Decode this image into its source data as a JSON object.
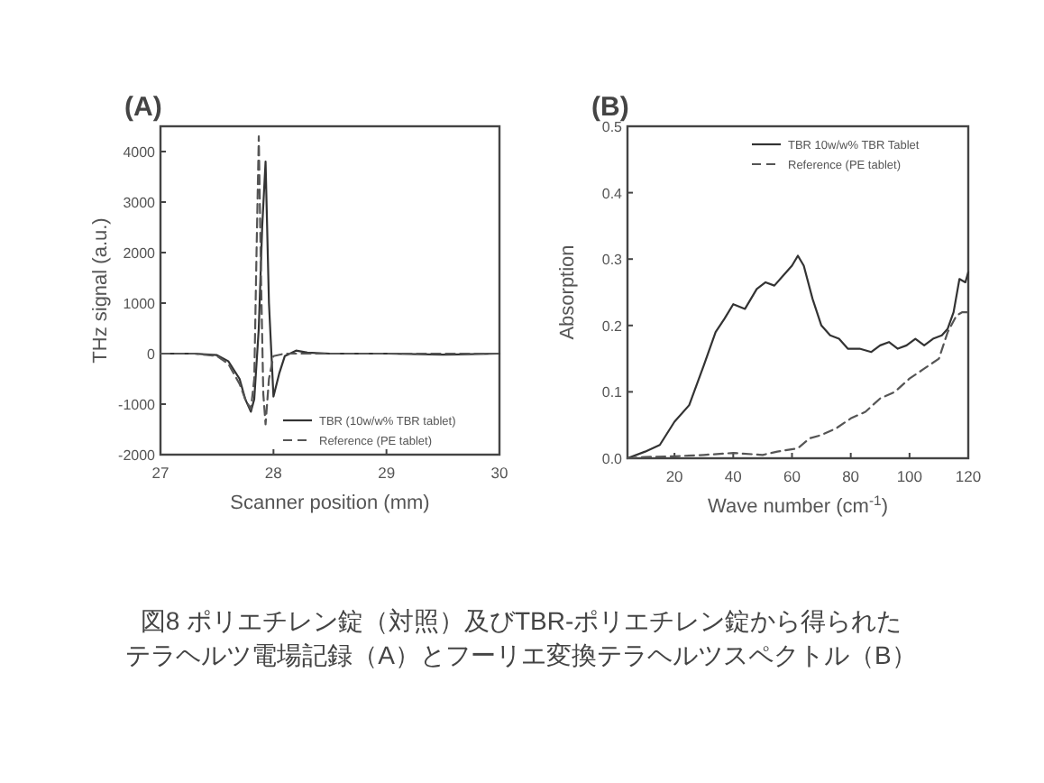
{
  "chart_data": [
    {
      "type": "line",
      "title": "(A)",
      "xlabel": "Scanner position (mm)",
      "ylabel": "THz signal (a.u.)",
      "xlim": [
        27,
        30
      ],
      "xticks": [
        27,
        28,
        29,
        30
      ],
      "ylim": [
        -2000,
        4500
      ],
      "yticks": [
        -2000,
        -1000,
        0,
        1000,
        2000,
        3000,
        4000
      ],
      "grid": false,
      "legend": "bottom right",
      "annotations": [
        "図8  ポリエチレン錠（対照）及びTBR-ポリエチレン錠から得られた",
        "テラヘルツ電場記録（A）とフーリエ変換テラヘルツスペクトル（B）"
      ],
      "series": [
        {
          "name": "TBR (10w/w% TBR tablet)",
          "color": "#333333",
          "line_style": "solid",
          "x": [
            27,
            27.3,
            27.5,
            27.6,
            27.7,
            27.75,
            27.8,
            27.83,
            27.87,
            27.9,
            27.93,
            27.96,
            28.0,
            28.05,
            28.1,
            28.2,
            28.3,
            28.5,
            29,
            29.5,
            30
          ],
          "values": [
            0,
            0,
            -30,
            -150,
            -500,
            -900,
            -1150,
            -900,
            500,
            2500,
            3800,
            1000,
            -850,
            -400,
            -50,
            60,
            20,
            0,
            0,
            -20,
            0
          ]
        },
        {
          "name": "Reference (PE tablet)",
          "color": "#555555",
          "line_style": "dashed",
          "x": [
            27,
            27.3,
            27.5,
            27.6,
            27.7,
            27.75,
            27.8,
            27.83,
            27.85,
            27.87,
            27.89,
            27.91,
            27.93,
            27.96,
            28.0,
            28.1,
            28.5,
            29,
            30
          ],
          "values": [
            0,
            0,
            -50,
            -200,
            -600,
            -900,
            -1100,
            -500,
            2000,
            4300,
            1500,
            -800,
            -1400,
            -500,
            -50,
            0,
            0,
            0,
            0
          ]
        }
      ]
    },
    {
      "type": "line",
      "title": "(B)",
      "xlabel": "Wave number (cm$^{-1}$)",
      "ylabel": "Absorption",
      "xlim": [
        4,
        120
      ],
      "xticks": [
        20,
        40,
        60,
        80,
        100,
        120
      ],
      "ylim": [
        0,
        0.5
      ],
      "yticks": [
        {
          "value": 0,
          "label": "0.0"
        },
        0.1,
        0.2,
        0.3,
        0.4,
        0.5
      ],
      "grid": false,
      "legend": "top right",
      "series": [
        {
          "name": "TBR 10w/w% TBR Tablet",
          "color": "#333333",
          "line_style": "solid",
          "x": [
            4,
            10,
            15,
            20,
            25,
            30,
            34,
            37,
            40,
            44,
            48,
            51,
            54,
            57,
            60,
            62,
            64,
            67,
            70,
            73,
            76,
            79,
            83,
            87,
            90,
            93,
            96,
            99,
            102,
            105,
            108,
            111,
            113,
            115,
            117,
            119,
            120
          ],
          "values": [
            0,
            0.01,
            0.02,
            0.055,
            0.08,
            0.14,
            0.19,
            0.21,
            0.232,
            0.225,
            0.255,
            0.265,
            0.26,
            0.275,
            0.29,
            0.305,
            0.29,
            0.24,
            0.2,
            0.185,
            0.18,
            0.165,
            0.165,
            0.16,
            0.17,
            0.175,
            0.165,
            0.17,
            0.18,
            0.17,
            0.18,
            0.185,
            0.195,
            0.22,
            0.27,
            0.265,
            0.28
          ]
        },
        {
          "name": "Reference (PE tablet)",
          "color": "#555555",
          "line_style": "dashed",
          "x": [
            4,
            10,
            20,
            30,
            40,
            50,
            55,
            62,
            66,
            70,
            75,
            80,
            85,
            90,
            95,
            100,
            105,
            110,
            113,
            116,
            118,
            120
          ],
          "values": [
            0,
            0.002,
            0.003,
            0.005,
            0.008,
            0.005,
            0.01,
            0.015,
            0.03,
            0.035,
            0.045,
            0.06,
            0.07,
            0.09,
            0.1,
            0.12,
            0.135,
            0.15,
            0.19,
            0.215,
            0.22,
            0.22
          ]
        }
      ]
    }
  ]
}
